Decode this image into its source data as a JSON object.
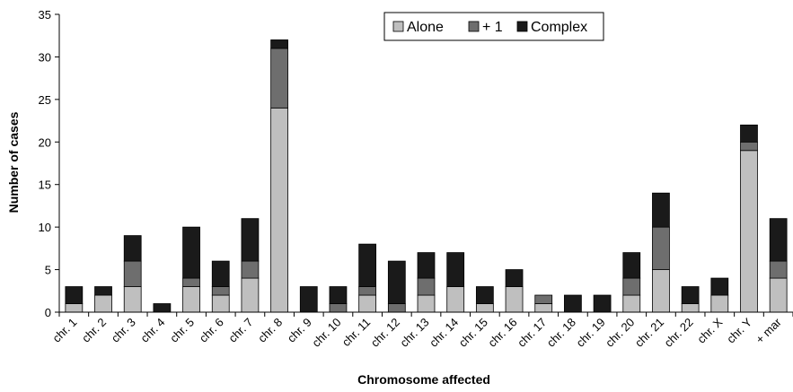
{
  "chart_data": {
    "type": "bar",
    "stacked": true,
    "title": "",
    "xlabel": "Chromosome affected",
    "ylabel": "Number of cases",
    "ylim": [
      0,
      35
    ],
    "yticks": [
      0,
      5,
      10,
      15,
      20,
      25,
      30,
      35
    ],
    "grid": false,
    "legend_position": "top-center",
    "categories": [
      "chr. 1",
      "chr. 2",
      "chr. 3",
      "chr. 4",
      "chr. 5",
      "chr. 6",
      "chr. 7",
      "chr. 8",
      "chr. 9",
      "chr. 10",
      "chr. 11",
      "chr. 12",
      "chr. 13",
      "chr. 14",
      "chr. 15",
      "chr. 16",
      "chr. 17",
      "chr. 18",
      "chr. 19",
      "chr. 20",
      "chr. 21",
      "chr. 22",
      "chr. X",
      "chr. Y",
      "+ mar"
    ],
    "series": [
      {
        "name": "Alone",
        "color": "#bfbfbf",
        "values": [
          1,
          2,
          3,
          0,
          3,
          2,
          4,
          24,
          0,
          0,
          2,
          0,
          2,
          3,
          1,
          3,
          1,
          0,
          0,
          2,
          5,
          1,
          2,
          19,
          4
        ]
      },
      {
        "name": "+ 1",
        "color": "#6e6e6e",
        "values": [
          0,
          0,
          3,
          0,
          1,
          1,
          2,
          7,
          0,
          1,
          1,
          1,
          2,
          0,
          0,
          0,
          1,
          0,
          0,
          2,
          5,
          0,
          0,
          1,
          2
        ]
      },
      {
        "name": "Complex",
        "color": "#1a1a1a",
        "values": [
          2,
          1,
          3,
          1,
          6,
          3,
          5,
          1,
          3,
          2,
          5,
          5,
          3,
          4,
          2,
          2,
          0,
          2,
          2,
          3,
          4,
          2,
          2,
          2,
          5
        ]
      }
    ]
  }
}
